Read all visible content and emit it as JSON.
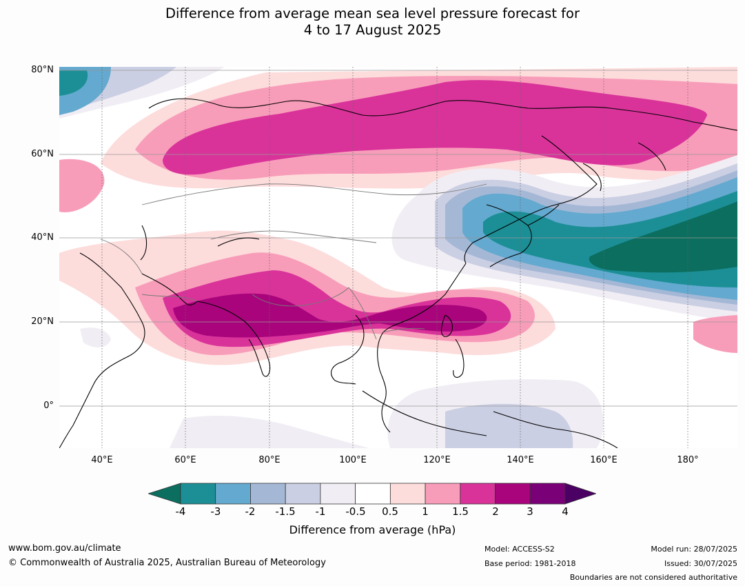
{
  "title_line1": "Difference from average mean sea level pressure forecast for",
  "title_line2": "4 to 17 August 2025",
  "map": {
    "lat_labels": [
      "80°N",
      "60°N",
      "40°N",
      "20°N",
      "0°"
    ],
    "lon_labels": [
      "40°E",
      "60°E",
      "80°E",
      "100°E",
      "120°E",
      "140°E",
      "160°E",
      "180°"
    ]
  },
  "colorbar": {
    "ticks": [
      "-4",
      "-3",
      "-2",
      "-1.5",
      "-1",
      "-0.5",
      "0.5",
      "1",
      "1.5",
      "2",
      "3",
      "4"
    ],
    "colors": [
      "#0b6e5f",
      "#1c8f96",
      "#64a9cf",
      "#a4b8d6",
      "#cbcfe3",
      "#f1edf4",
      "#ffffff",
      "#fddcdc",
      "#f89db9",
      "#d9339a",
      "#a9047c",
      "#7a0077",
      "#4b0064"
    ],
    "label": "Difference from average (hPa)"
  },
  "footer": {
    "website": "www.bom.gov.au/climate",
    "copyright": "© Commonwealth of Australia 2025, Australian Bureau of Meteorology",
    "model": "Model: ACCESS-S2",
    "base_period": "Base period: 1981-2018",
    "model_run": "Model run: 28/07/2025",
    "issued": "Issued: 30/07/2025",
    "disclaimer": "Boundaries are not considered authoritative"
  }
}
